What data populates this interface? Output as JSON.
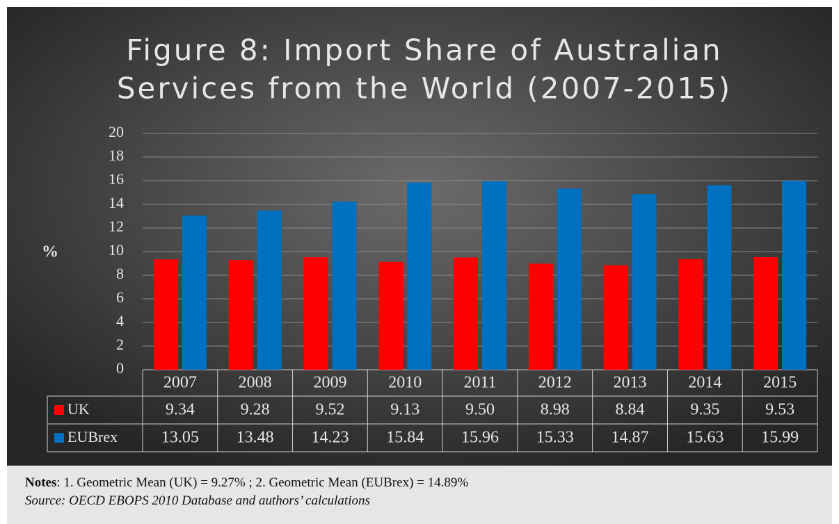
{
  "chart_data": {
    "type": "bar",
    "title": [
      "Figure 8: Import Share of Australian",
      "Services from the World (2007-2015)"
    ],
    "y_label": "%",
    "categories": [
      "2007",
      "2008",
      "2009",
      "2010",
      "2011",
      "2012",
      "2013",
      "2014",
      "2015"
    ],
    "series": [
      {
        "name": "UK",
        "color": "#ff0000",
        "values": [
          9.34,
          9.28,
          9.52,
          9.13,
          9.5,
          8.98,
          8.84,
          9.35,
          9.53
        ],
        "value_labels": [
          "9.34",
          "9.28",
          "9.52",
          "9.13",
          "9.50",
          "8.98",
          "8.84",
          "9.35",
          "9.53"
        ]
      },
      {
        "name": "EUBrex",
        "color": "#0070c0",
        "values": [
          13.05,
          13.48,
          14.23,
          15.84,
          15.96,
          15.33,
          14.87,
          15.63,
          15.99
        ],
        "value_labels": [
          "13.05",
          "13.48",
          "14.23",
          "15.84",
          "15.96",
          "15.33",
          "14.87",
          "15.63",
          "15.99"
        ]
      }
    ],
    "ylim": [
      0,
      20
    ],
    "yticks": [
      0,
      2,
      4,
      6,
      8,
      10,
      12,
      14,
      16,
      18,
      20
    ],
    "grid": true
  },
  "notes": {
    "label": "Notes",
    "text": ": 1. Geometric Mean (UK) = 9.27% ; 2. Geometric Mean (EUBrex) = 14.89%",
    "source": "Source: OECD EBOPS 2010 Database and authors’ calculations"
  }
}
